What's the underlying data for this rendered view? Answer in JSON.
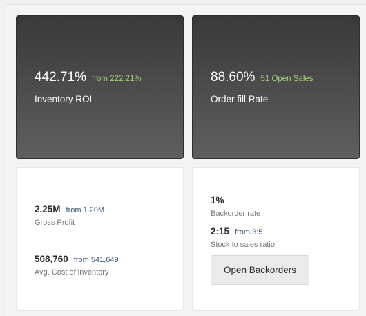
{
  "kpis": {
    "roi": {
      "value": "442.71%",
      "delta": "from 222.21%",
      "label": "Inventory ROI"
    },
    "fill_rate": {
      "value": "88.60%",
      "delta": "51 Open Sales",
      "label": "Order fill Rate"
    }
  },
  "financial": {
    "gross_profit": {
      "value": "2.25M",
      "from": "from 1.20M",
      "label": "Gross Profit"
    },
    "avg_cost": {
      "value": "508,760",
      "from": "from 541,649",
      "label": "Avg. Cost of inventory"
    }
  },
  "backorders": {
    "rate": {
      "value": "1%",
      "label": "Backorder rate"
    },
    "stock_ratio": {
      "value": "2:15",
      "from": "from 3:5",
      "label": "Stock to sales ratio"
    },
    "button_label": "Open Backorders"
  },
  "colors": {
    "delta_green": "#a8d27a",
    "from_blue": "#3a5a7a",
    "dark_card_top": "#383938",
    "dark_card_bottom": "#5f5f5f"
  }
}
